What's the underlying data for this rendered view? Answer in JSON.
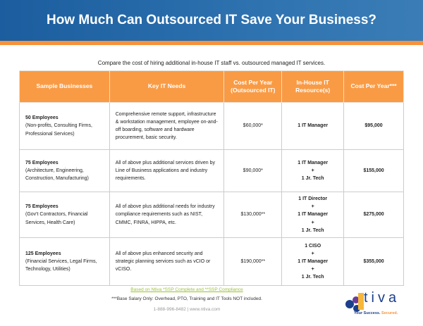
{
  "title": "How Much Can Outsourced IT Save Your Business?",
  "subtitle": "Compare the cost of hiring additional in-house IT staff vs. outsourced managed IT services.",
  "table": {
    "headers": [
      "Sample Businesses",
      "Key IT Needs",
      "Cost Per Year (Outsourced IT)",
      "In-House IT Resource(s)",
      "Cost Per Year***"
    ],
    "rows": [
      {
        "employees": "50 Employees",
        "types": "(Non-profits, Consulting Firms, Professional Services)",
        "needs": "Comprehensive remote support, infrastructure & workstation management, employee on-and-off boarding, software and hardware procurement, basic security.",
        "outsourced": "$60,000*",
        "resources": [
          "1 IT Manager"
        ],
        "inhouse": "$95,000"
      },
      {
        "employees": "75 Employees",
        "types": "(Architecture, Engineering, Construction, Manufacturing)",
        "needs": "All of above plus additional services driven by Line of Business applications and industry requirements.",
        "outsourced": "$90,000*",
        "resources": [
          "1 IT Manager",
          "+",
          "1 Jr. Tech"
        ],
        "inhouse": "$155,000"
      },
      {
        "employees": "75 Employees",
        "types": "(Gov't Contractors, Financial Services, Health Care)",
        "needs": "All of above plus additional needs for industry compliance requirements such as NIST, CMMC, FINRA, HIPPA, etc.",
        "outsourced": "$130,000**",
        "resources": [
          "1 IT Director",
          "+",
          "1 IT Manager",
          "+",
          "1 Jr. Tech"
        ],
        "inhouse": "$275,000"
      },
      {
        "employees": "125 Employees",
        "types": "(Financial Services, Legal Firms, Technology, Utilities)",
        "needs": "All of above plus enhanced security and strategic planning services such as vCIO or vCISO.",
        "outsourced": "$190,000**",
        "resources": [
          "1 CISO",
          "+",
          "1 IT Manager",
          "+",
          "1 Jr. Tech"
        ],
        "inhouse": "$355,000"
      }
    ]
  },
  "footer": {
    "link": "Based on Ntiva *SSP Complete and **SSP Compliance",
    "note": "***Base Salary Only: Overhead, PTO, Training and IT Tools NOT included.",
    "contact": "1-888-996-8482 | www.ntiva.com"
  },
  "logo": {
    "word": "tiva",
    "tagline_a": "Your Success.",
    "tagline_b": "Secured."
  },
  "colors": {
    "banner": "#1b5d9e",
    "accent": "#f99b45"
  }
}
